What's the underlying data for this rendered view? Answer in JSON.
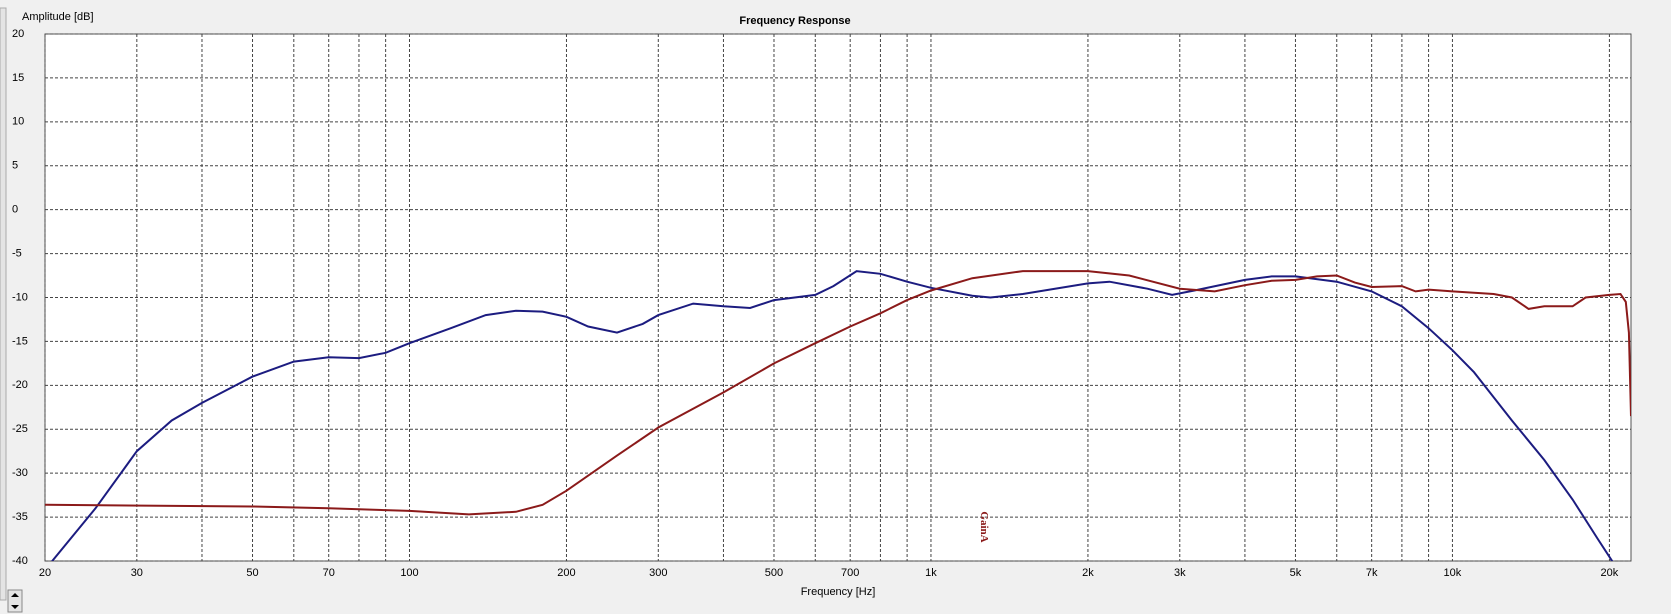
{
  "chart_data": {
    "type": "line",
    "title": "Frequency Response",
    "xlabel": "Frequency [Hz]",
    "ylabel": "Amplitude [dB]",
    "xscale": "log",
    "grid": true,
    "xlim": [
      20,
      22000
    ],
    "ylim": [
      -40,
      20
    ],
    "xticks": [
      20,
      30,
      50,
      70,
      100,
      200,
      300,
      500,
      700,
      {
        "value": 1000,
        "label": "1k"
      },
      {
        "value": 2000,
        "label": "2k"
      },
      {
        "value": 3000,
        "label": "3k"
      },
      {
        "value": 5000,
        "label": "5k"
      },
      {
        "value": 7000,
        "label": "7k"
      },
      {
        "value": 10000,
        "label": "10k"
      },
      {
        "value": 20000,
        "label": "20k"
      }
    ],
    "xminor": [
      40,
      60,
      80,
      90,
      400,
      600,
      800,
      900,
      4000,
      6000,
      8000,
      9000
    ],
    "yticks": [
      -40,
      -35,
      -30,
      -25,
      -20,
      -15,
      -10,
      -5,
      0,
      5,
      10,
      15,
      20
    ],
    "annotations": [
      {
        "text": "GainA",
        "x": 1260
      }
    ],
    "series": [
      {
        "color": "#1c1c80",
        "x": [
          20,
          25,
          30,
          35,
          40,
          50,
          60,
          70,
          80,
          90,
          100,
          120,
          140,
          160,
          180,
          200,
          220,
          250,
          280,
          300,
          350,
          400,
          450,
          500,
          600,
          650,
          720,
          800,
          900,
          1000,
          1200,
          1300,
          1500,
          2000,
          2200,
          2600,
          2900,
          3200,
          4000,
          4500,
          5000,
          6000,
          7000,
          8000,
          9000,
          10000,
          11000,
          13000,
          15000,
          17000,
          19000,
          20500
        ],
        "values": [
          -41,
          -34,
          -27.5,
          -24,
          -22,
          -19,
          -17.3,
          -16.8,
          -16.9,
          -16.3,
          -15.2,
          -13.5,
          -12,
          -11.5,
          -11.6,
          -12.2,
          -13.3,
          -14,
          -13,
          -12,
          -10.7,
          -11,
          -11.2,
          -10.3,
          -9.7,
          -8.7,
          -7,
          -7.3,
          -8.2,
          -8.9,
          -9.8,
          -10,
          -9.6,
          -8.4,
          -8.2,
          -9,
          -9.7,
          -9.2,
          -8,
          -7.6,
          -7.6,
          -8.2,
          -9.3,
          -11,
          -13.5,
          -16,
          -18.5,
          -24,
          -28.5,
          -33,
          -37.5,
          -40.5
        ]
      },
      {
        "color": "#8b1a1a",
        "x": [
          20,
          50,
          70,
          100,
          130,
          160,
          180,
          200,
          250,
          300,
          400,
          500,
          600,
          700,
          800,
          900,
          1000,
          1200,
          1500,
          2000,
          2400,
          3000,
          3500,
          4000,
          4500,
          5000,
          5500,
          6000,
          6500,
          7000,
          8000,
          8500,
          9000,
          10000,
          12000,
          13000,
          14000,
          15000,
          17000,
          18000,
          20000,
          21000,
          21500,
          21800,
          22000
        ],
        "values": [
          -33.6,
          -33.8,
          -34,
          -34.3,
          -34.7,
          -34.4,
          -33.6,
          -32,
          -28,
          -24.8,
          -20.8,
          -17.5,
          -15.2,
          -13.3,
          -11.8,
          -10.3,
          -9.2,
          -7.8,
          -7,
          -7,
          -7.5,
          -9,
          -9.3,
          -8.6,
          -8.1,
          -8,
          -7.6,
          -7.5,
          -8.3,
          -8.8,
          -8.7,
          -9.3,
          -9.1,
          -9.3,
          -9.6,
          -10,
          -11.3,
          -11,
          -11,
          -10,
          -9.7,
          -9.6,
          -10.5,
          -14,
          -23.5
        ]
      }
    ]
  }
}
